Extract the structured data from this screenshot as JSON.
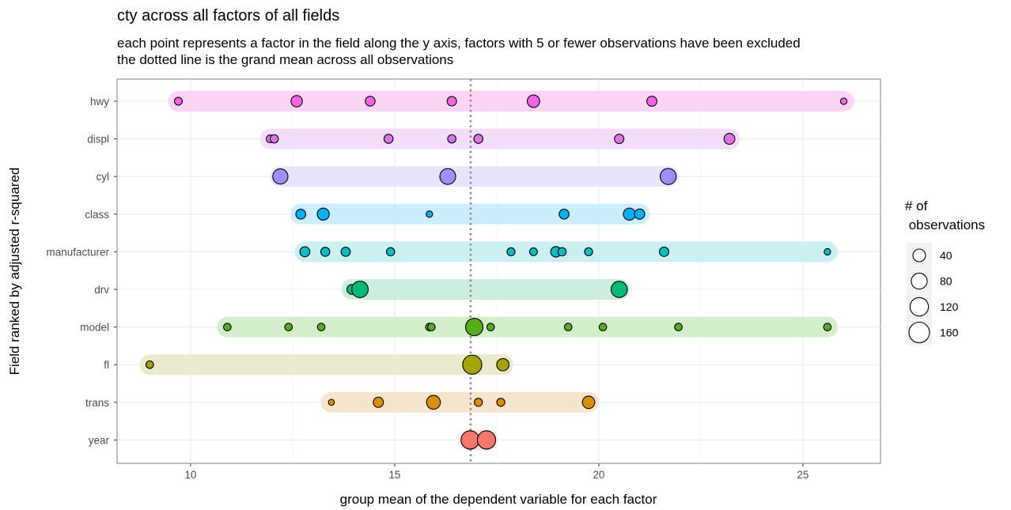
{
  "chart_data": {
    "type": "scatter",
    "title": "cty across all factors of all fields",
    "subtitle_lines": [
      "each point represents a factor in the field along the y axis, factors with 5 or fewer observations have been excluded",
      "the dotted line is the grand mean across all observations"
    ],
    "xlabel": "group mean of the dependent variable for each factor",
    "ylabel": "Field ranked by adjusted r-squared",
    "xlim": [
      8.2,
      26.9
    ],
    "x_ticks": [
      10,
      15,
      20,
      25
    ],
    "grand_mean": 16.86,
    "grid": true,
    "legend": {
      "title_lines": [
        "# of",
        " observations"
      ],
      "position": "right",
      "sizes": [
        40,
        80,
        120,
        160
      ]
    },
    "series": [
      {
        "name": "hwy",
        "color": "#F564E3",
        "band": "#FBD5F3",
        "points": [
          [
            9.7,
            6
          ],
          [
            12.6,
            28
          ],
          [
            14.4,
            16
          ],
          [
            16.4,
            14
          ],
          [
            18.4,
            38
          ],
          [
            21.3,
            18
          ],
          [
            26.0,
            2
          ]
        ]
      },
      {
        "name": "displ",
        "color": "#DA75E8",
        "band": "#F4DDF8",
        "points": [
          [
            11.95,
            6
          ],
          [
            12.05,
            8
          ],
          [
            14.85,
            12
          ],
          [
            16.4,
            8
          ],
          [
            17.05,
            12
          ],
          [
            20.5,
            14
          ],
          [
            23.2,
            24
          ]
        ]
      },
      {
        "name": "cyl",
        "color": "#9F8CFF",
        "band": "#E7E4FC",
        "points": [
          [
            12.2,
            70
          ],
          [
            16.3,
            79
          ],
          [
            21.7,
            81
          ]
        ]
      },
      {
        "name": "class",
        "color": "#00B0F6",
        "band": "#CCEDFB",
        "points": [
          [
            12.7,
            17
          ],
          [
            13.25,
            34
          ],
          [
            15.85,
            2
          ],
          [
            19.15,
            17
          ],
          [
            20.75,
            35
          ],
          [
            21.0,
            20
          ]
        ]
      },
      {
        "name": "manufacturer",
        "color": "#00BFC4",
        "band": "#CCF0F1",
        "points": [
          [
            12.8,
            18
          ],
          [
            13.3,
            12
          ],
          [
            13.8,
            13
          ],
          [
            14.9,
            8
          ],
          [
            17.85,
            7
          ],
          [
            18.4,
            6
          ],
          [
            18.95,
            21
          ],
          [
            19.1,
            8
          ],
          [
            19.75,
            7
          ],
          [
            21.6,
            14
          ],
          [
            25.6,
            2
          ]
        ]
      },
      {
        "name": "drv",
        "color": "#00BA77",
        "band": "#CCEEDD",
        "points": [
          [
            13.95,
            16
          ],
          [
            14.15,
            88
          ],
          [
            20.5,
            85
          ]
        ]
      },
      {
        "name": "model",
        "color": "#56AC19",
        "band": "#D4EDCB",
        "points": [
          [
            10.9,
            5
          ],
          [
            12.4,
            5
          ],
          [
            13.2,
            5
          ],
          [
            15.85,
            5
          ],
          [
            15.9,
            5
          ],
          [
            16.95,
            103
          ],
          [
            17.35,
            5
          ],
          [
            19.25,
            5
          ],
          [
            20.1,
            5
          ],
          [
            21.95,
            5
          ],
          [
            25.6,
            5
          ]
        ]
      },
      {
        "name": "fl",
        "color": "#A3A500",
        "band": "#ECEACC",
        "points": [
          [
            9.0,
            5
          ],
          [
            16.9,
            132
          ],
          [
            17.65,
            37
          ]
        ]
      },
      {
        "name": "trans",
        "color": "#D89000",
        "band": "#F6E5CC",
        "points": [
          [
            13.45,
            1
          ],
          [
            14.6,
            19
          ],
          [
            15.95,
            53
          ],
          [
            17.05,
            7
          ],
          [
            17.6,
            7
          ],
          [
            19.75,
            38
          ]
        ]
      },
      {
        "name": "year",
        "color": "#F8766D",
        "band": "#FDE2E0",
        "points": [
          [
            16.85,
            117
          ],
          [
            17.25,
            117
          ]
        ]
      }
    ]
  }
}
